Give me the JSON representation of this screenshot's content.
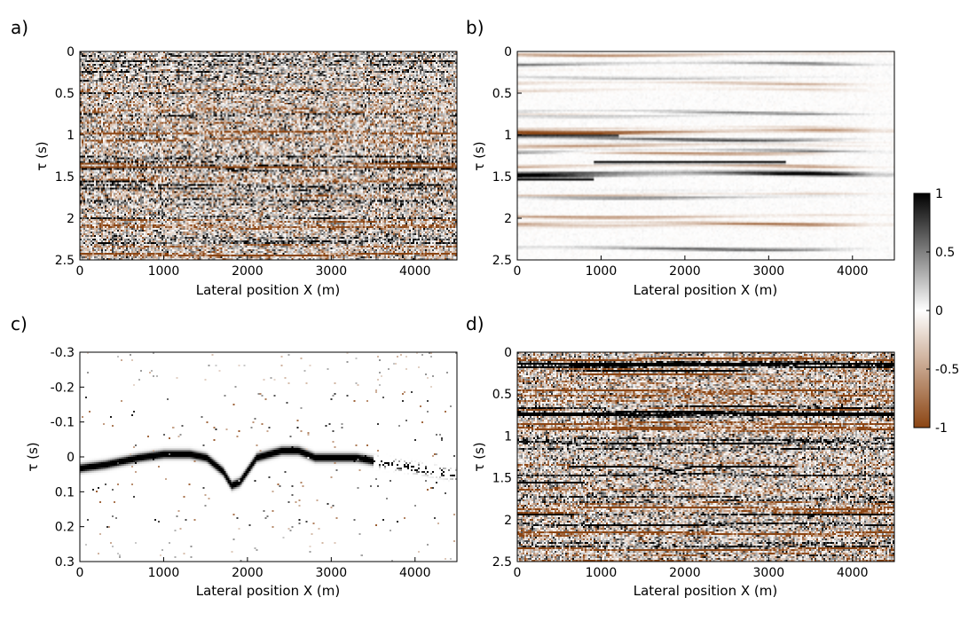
{
  "chart_data": [
    {
      "type": "heatmap",
      "panel_label": "a)",
      "xlabel": "Lateral position X (m)",
      "ylabel": "τ (s)",
      "xlim": [
        0,
        4500
      ],
      "ylim": [
        2.5,
        0
      ],
      "xticks": [
        "0",
        "1000",
        "2000",
        "3000",
        "4000"
      ],
      "yticks": [
        "0",
        "0.5",
        "1",
        "1.5",
        "2",
        "2.5"
      ],
      "content": "noisy"
    },
    {
      "type": "heatmap",
      "panel_label": "b)",
      "xlabel": "Lateral position X (m)",
      "ylabel": "τ (s)",
      "xlim": [
        0,
        4500
      ],
      "ylim": [
        2.5,
        0
      ],
      "xticks": [
        "0",
        "1000",
        "2000",
        "3000",
        "4000"
      ],
      "yticks": [
        "0",
        "0.5",
        "1",
        "1.5",
        "2",
        "2.5"
      ],
      "content": "smooth"
    },
    {
      "type": "heatmap",
      "panel_label": "c)",
      "xlabel": "Lateral position X (m)",
      "ylabel": "τ (s)",
      "xlim": [
        0,
        4500
      ],
      "ylim": [
        0.3,
        -0.3
      ],
      "xticks": [
        "0",
        "1000",
        "2000",
        "3000",
        "4000"
      ],
      "yticks": [
        "-0.3",
        "-0.2",
        "-0.1",
        "0",
        "0.1",
        "0.2",
        "0.3"
      ],
      "content": "shift",
      "shift_curve": {
        "x": [
          0,
          300,
          700,
          1000,
          1300,
          1500,
          1700,
          1800,
          1900,
          2100,
          2400,
          2600,
          2800,
          3000,
          3300,
          3500,
          4000,
          4500
        ],
        "tau": [
          0.03,
          0.02,
          0.0,
          -0.01,
          -0.01,
          0.0,
          0.04,
          0.08,
          0.07,
          0.0,
          -0.02,
          -0.02,
          0.0,
          0.0,
          0.0,
          0.01,
          0.03,
          0.05
        ]
      }
    },
    {
      "type": "heatmap",
      "panel_label": "d)",
      "xlabel": "Lateral position X (m)",
      "ylabel": "τ (s)",
      "xlim": [
        0,
        4500
      ],
      "ylim": [
        2.5,
        0
      ],
      "xticks": [
        "0",
        "1000",
        "2000",
        "3000",
        "4000"
      ],
      "yticks": [
        "0",
        "0.5",
        "1",
        "1.5",
        "2",
        "2.5"
      ],
      "content": "noisy-strong"
    }
  ],
  "colorbar": {
    "range": [
      -1,
      1
    ],
    "ticks": [
      "1",
      "0.5",
      "0",
      "-0.5",
      "-1"
    ],
    "colors": {
      "positive": "#000000",
      "zero": "#ffffff",
      "negative": "#8b4513"
    }
  }
}
